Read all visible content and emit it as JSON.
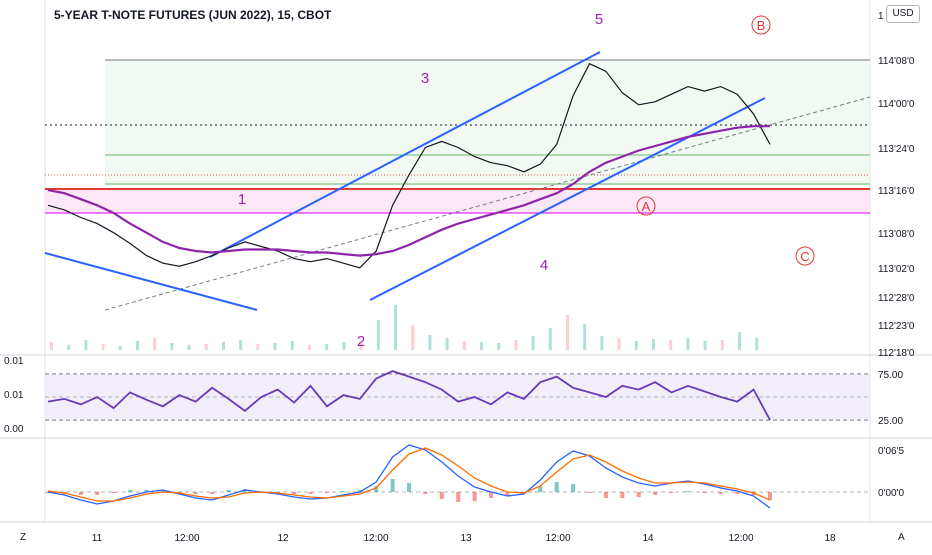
{
  "title": "5-YEAR T-NOTE FUTURES (JUN 2022), 15, CBOT",
  "currency": "USD",
  "corner_left": "Z",
  "corner_right": "A",
  "chart_data": [
    {
      "type": "line",
      "panel": "price",
      "y_tick_labels": [
        "1",
        "114'08'0",
        "114'00'0",
        "113'24'0",
        "113'16'0",
        "113'08'0",
        "113'02'0",
        "112'28'0",
        "112'23'0",
        "112'18'0"
      ],
      "x_tick_labels": [
        "11",
        "12:00",
        "12",
        "12:00",
        "13",
        "12:00",
        "14",
        "12:00",
        "18"
      ],
      "annotations": [
        "1",
        "2",
        "3",
        "4",
        "5",
        "A",
        "B",
        "C"
      ],
      "series": [
        {
          "name": "",
          "color": "#131722",
          "values": [
            113.3,
            113.27,
            113.22,
            113.18,
            113.12,
            113.05,
            112.97,
            112.92,
            112.9,
            112.93,
            112.97,
            113.02,
            113.06,
            113.03,
            113.0,
            112.95,
            112.93,
            112.95,
            112.92,
            112.89,
            113.0,
            113.3,
            113.5,
            113.68,
            113.72,
            113.68,
            113.62,
            113.58,
            113.56,
            113.52,
            113.57,
            113.7,
            114.02,
            114.23,
            114.18,
            114.04,
            113.96,
            113.98,
            114.03,
            114.08,
            114.05,
            114.08,
            114.03,
            113.9,
            113.7
          ]
        },
        {
          "name": "",
          "color": "#8e24aa",
          "values": [
            113.4,
            113.38,
            113.34,
            113.3,
            113.25,
            113.18,
            113.12,
            113.06,
            113.02,
            113.0,
            112.99,
            113.0,
            113.01,
            113.01,
            113.01,
            113.0,
            112.99,
            112.99,
            112.98,
            112.97,
            112.98,
            113.0,
            113.04,
            113.09,
            113.14,
            113.18,
            113.21,
            113.24,
            113.27,
            113.3,
            113.34,
            113.38,
            113.44,
            113.52,
            113.58,
            113.62,
            113.66,
            113.69,
            113.72,
            113.75,
            113.77,
            113.79,
            113.81,
            113.82,
            113.82
          ]
        }
      ]
    },
    {
      "type": "line",
      "panel": "rsi",
      "y_tick_labels": [
        "75.00",
        "25.00"
      ],
      "left_tick_labels": [
        "0.01",
        "0.01",
        "0.00"
      ],
      "series": [
        {
          "name": "",
          "color": "#673ab7",
          "values": [
            45,
            48,
            42,
            50,
            38,
            55,
            47,
            40,
            52,
            45,
            60,
            48,
            35,
            50,
            58,
            44,
            62,
            40,
            52,
            48,
            70,
            78,
            72,
            66,
            58,
            45,
            50,
            42,
            55,
            48,
            66,
            72,
            60,
            55,
            50,
            62,
            58,
            66,
            55,
            62,
            56,
            50,
            45,
            58,
            25
          ]
        }
      ]
    },
    {
      "type": "line",
      "panel": "macd",
      "y_tick_labels": [
        "0'06'5",
        "0'00'0"
      ],
      "series": [
        {
          "name": "",
          "color": "#2962ff",
          "values": [
            0.0,
            -0.3,
            -0.8,
            -1.2,
            -0.9,
            -0.4,
            0.0,
            0.2,
            -0.2,
            -0.6,
            -0.8,
            -0.3,
            0.2,
            0.0,
            -0.2,
            -0.5,
            -0.7,
            -0.6,
            -0.3,
            0.0,
            1.0,
            3.5,
            4.7,
            4.2,
            3.0,
            1.6,
            0.5,
            0.0,
            -0.4,
            -0.2,
            1.2,
            3.0,
            4.1,
            3.6,
            2.4,
            1.5,
            0.9,
            0.6,
            0.9,
            1.1,
            0.8,
            0.4,
            0.1,
            -0.4,
            -1.6
          ]
        },
        {
          "name": "",
          "color": "#ff6d00",
          "values": [
            0.1,
            -0.1,
            -0.5,
            -0.9,
            -0.9,
            -0.6,
            -0.2,
            0.0,
            -0.1,
            -0.4,
            -0.6,
            -0.5,
            -0.1,
            0.0,
            -0.1,
            -0.3,
            -0.5,
            -0.6,
            -0.4,
            -0.2,
            0.4,
            2.2,
            3.8,
            4.4,
            3.7,
            2.6,
            1.4,
            0.6,
            0.0,
            -0.1,
            0.6,
            2.0,
            3.3,
            3.7,
            3.0,
            2.1,
            1.4,
            0.9,
            0.9,
            1.0,
            0.9,
            0.6,
            0.3,
            -0.1,
            -0.8
          ]
        }
      ]
    }
  ]
}
